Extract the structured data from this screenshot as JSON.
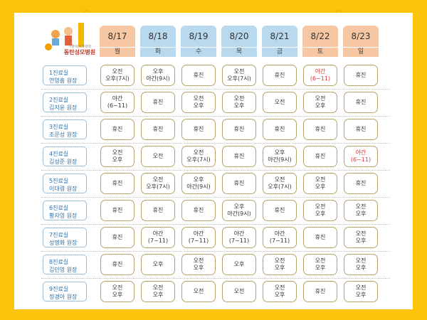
{
  "logo": {
    "subtitle": "가톨릭의과대학",
    "name": "동탄성모병원"
  },
  "days": [
    {
      "date": "8/17",
      "day": "월",
      "color": "#f7c7a3"
    },
    {
      "date": "8/18",
      "day": "화",
      "color": "#b9d9ee"
    },
    {
      "date": "8/19",
      "day": "수",
      "color": "#b9d9ee"
    },
    {
      "date": "8/20",
      "day": "목",
      "color": "#b9d9ee"
    },
    {
      "date": "8/21",
      "day": "금",
      "color": "#b9d9ee"
    },
    {
      "date": "8/22",
      "day": "토",
      "color": "#f7c7a3"
    },
    {
      "date": "8/23",
      "day": "일",
      "color": "#f7c7a3"
    }
  ],
  "rows": [
    {
      "room": "1진료실",
      "doctor": "연영흠 원장",
      "cells": [
        {
          "lines": [
            "오전",
            "오후(7시)"
          ]
        },
        {
          "lines": [
            "오후",
            "야간(9시)"
          ]
        },
        {
          "lines": [
            "휴진"
          ]
        },
        {
          "lines": [
            "오전",
            "오후(7시)"
          ]
        },
        {
          "lines": [
            "휴진"
          ]
        },
        {
          "lines": [
            "야간",
            "(6~11)"
          ],
          "color": "#e03a3a"
        },
        {
          "lines": [
            "휴진"
          ]
        }
      ]
    },
    {
      "room": "2진료실",
      "doctor": "김지윤 원장",
      "cells": [
        {
          "lines": [
            "야간",
            "(6~11)"
          ]
        },
        {
          "lines": [
            "휴진"
          ]
        },
        {
          "lines": [
            "오전",
            "오후"
          ]
        },
        {
          "lines": [
            "오전",
            "오후"
          ]
        },
        {
          "lines": [
            "오전"
          ]
        },
        {
          "lines": [
            "오전",
            "오후"
          ]
        },
        {
          "lines": [
            "휴진"
          ]
        }
      ]
    },
    {
      "room": "3진료실",
      "doctor": "조문성 원장",
      "cells": [
        {
          "lines": [
            "휴진"
          ]
        },
        {
          "lines": [
            "휴진"
          ]
        },
        {
          "lines": [
            "휴진"
          ]
        },
        {
          "lines": [
            "휴진"
          ]
        },
        {
          "lines": [
            "휴진"
          ]
        },
        {
          "lines": [
            "휴진"
          ]
        },
        {
          "lines": [
            "휴진"
          ]
        }
      ]
    },
    {
      "room": "4진료실",
      "doctor": "김성준 원장",
      "cells": [
        {
          "lines": [
            "오전",
            "오후"
          ]
        },
        {
          "lines": [
            "오전"
          ]
        },
        {
          "lines": [
            "오전",
            "오후(7시)"
          ]
        },
        {
          "lines": [
            "휴진"
          ]
        },
        {
          "lines": [
            "오후",
            "야간(9시)"
          ]
        },
        {
          "lines": [
            "휴진"
          ]
        },
        {
          "lines": [
            "야간",
            "(6~11)"
          ],
          "color": "#e03a3a"
        }
      ]
    },
    {
      "room": "5진료실",
      "doctor": "이대령 원장",
      "cells": [
        {
          "lines": [
            "휴진"
          ]
        },
        {
          "lines": [
            "오전",
            "오후(7시)"
          ]
        },
        {
          "lines": [
            "오후",
            "야간(9시)"
          ]
        },
        {
          "lines": [
            "휴진"
          ]
        },
        {
          "lines": [
            "오전",
            "오후(7시)"
          ]
        },
        {
          "lines": [
            "오전",
            "오후"
          ]
        },
        {
          "lines": [
            "휴진"
          ]
        }
      ]
    },
    {
      "room": "6진료실",
      "doctor": "황자영 원장",
      "cells": [
        {
          "lines": [
            "휴진"
          ]
        },
        {
          "lines": [
            "휴진"
          ]
        },
        {
          "lines": [
            "휴진"
          ]
        },
        {
          "lines": [
            "오후",
            "야간(9시)"
          ]
        },
        {
          "lines": [
            "휴진"
          ]
        },
        {
          "lines": [
            "오전",
            "오후"
          ]
        },
        {
          "lines": [
            "오전",
            "오후"
          ]
        }
      ]
    },
    {
      "room": "7진료실",
      "doctor": "성명화 원장",
      "cells": [
        {
          "lines": [
            "휴진"
          ]
        },
        {
          "lines": [
            "야간",
            "(7~11)"
          ]
        },
        {
          "lines": [
            "야간",
            "(7~11)"
          ]
        },
        {
          "lines": [
            "야간",
            "(7~11)"
          ]
        },
        {
          "lines": [
            "야간",
            "(7~11)"
          ]
        },
        {
          "lines": [
            "휴진"
          ]
        },
        {
          "lines": [
            "오전",
            "오후"
          ]
        }
      ]
    },
    {
      "room": "8진료실",
      "doctor": "김민영 원장",
      "cells": [
        {
          "lines": [
            "휴진"
          ]
        },
        {
          "lines": [
            "오후"
          ]
        },
        {
          "lines": [
            "오전",
            "오후"
          ]
        },
        {
          "lines": [
            "오후"
          ]
        },
        {
          "lines": [
            "오전",
            "오후"
          ]
        },
        {
          "lines": [
            "오전",
            "오후"
          ]
        },
        {
          "lines": [
            "오전",
            "오후"
          ]
        }
      ]
    },
    {
      "room": "9진료실",
      "doctor": "정경아 원장",
      "cells": [
        {
          "lines": [
            "오전",
            "오후"
          ]
        },
        {
          "lines": [
            "오전",
            "오후"
          ]
        },
        {
          "lines": [
            "오전"
          ]
        },
        {
          "lines": [
            "오전"
          ]
        },
        {
          "lines": [
            "오전",
            "오후"
          ]
        },
        {
          "lines": [
            "휴진"
          ]
        },
        {
          "lines": [
            "오전",
            "오후"
          ]
        }
      ]
    }
  ]
}
